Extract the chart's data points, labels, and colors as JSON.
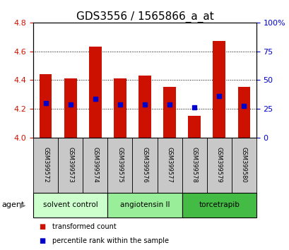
{
  "title": "GDS3556 / 1565866_a_at",
  "samples": [
    "GSM399572",
    "GSM399573",
    "GSM399574",
    "GSM399575",
    "GSM399576",
    "GSM399577",
    "GSM399578",
    "GSM399579",
    "GSM399580"
  ],
  "transformed_counts": [
    4.44,
    4.41,
    4.63,
    4.41,
    4.43,
    4.35,
    4.15,
    4.67,
    4.35
  ],
  "percentile_ranks": [
    4.24,
    4.23,
    4.27,
    4.23,
    4.23,
    4.23,
    4.21,
    4.29,
    4.22
  ],
  "bar_bottom": 4.0,
  "ylim": [
    4.0,
    4.8
  ],
  "right_ylim": [
    0,
    100
  ],
  "right_yticks": [
    0,
    25,
    50,
    75,
    100
  ],
  "right_yticklabels": [
    "0",
    "25",
    "50",
    "75",
    "100%"
  ],
  "left_yticks": [
    4.0,
    4.2,
    4.4,
    4.6,
    4.8
  ],
  "bar_color": "#cc1100",
  "percentile_color": "#0000cc",
  "agent_groups": [
    {
      "label": "solvent control",
      "start": 0,
      "end": 3,
      "color": "#ccffcc"
    },
    {
      "label": "angiotensin II",
      "start": 3,
      "end": 6,
      "color": "#99ee99"
    },
    {
      "label": "torcetrapib",
      "start": 6,
      "end": 9,
      "color": "#44bb44"
    }
  ],
  "legend_items": [
    {
      "label": "transformed count",
      "color": "#cc1100"
    },
    {
      "label": "percentile rank within the sample",
      "color": "#0000cc"
    }
  ],
  "left_tick_color": "#cc1100",
  "right_tick_color": "#0000cc",
  "title_fontsize": 11,
  "tick_fontsize": 8,
  "bar_width": 0.5,
  "bg_gray": "#c8c8c8"
}
